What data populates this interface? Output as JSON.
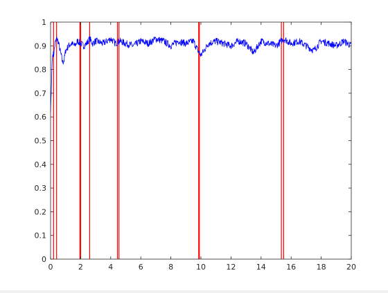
{
  "chart_data": {
    "type": "line",
    "title": "",
    "xlabel": "",
    "ylabel": "",
    "xlim": [
      0,
      20
    ],
    "ylim": [
      0,
      1
    ],
    "x_ticks": [
      "0",
      "2",
      "4",
      "6",
      "8",
      "10",
      "12",
      "14",
      "16",
      "18",
      "20"
    ],
    "y_ticks": [
      "0",
      "0.1",
      "0.2",
      "0.3",
      "0.4",
      "0.5",
      "0.6",
      "0.7",
      "0.8",
      "0.9",
      "1"
    ],
    "grid": false,
    "legend": "none",
    "series": [
      {
        "color": "#0000ff",
        "style": "solid-noisy",
        "x": [
          0.0,
          0.05,
          0.1,
          0.15,
          0.2,
          0.3,
          0.4,
          0.5,
          0.6,
          0.7,
          0.8,
          0.9,
          1.0,
          1.2,
          1.4,
          1.6,
          1.8,
          2.0,
          2.2,
          2.4,
          2.6,
          2.8,
          3.0,
          3.5,
          4.0,
          4.3,
          4.6,
          5.0,
          5.5,
          6.0,
          6.5,
          7.0,
          7.5,
          8.0,
          8.5,
          9.0,
          9.5,
          9.8,
          10.0,
          10.5,
          11.0,
          11.5,
          12.0,
          12.5,
          13.0,
          13.5,
          14.0,
          14.5,
          15.0,
          15.5,
          16.0,
          16.5,
          17.0,
          17.5,
          18.0,
          18.5,
          19.0,
          19.5,
          20.0
        ],
        "y": [
          0.62,
          0.72,
          0.83,
          0.87,
          0.86,
          0.91,
          0.93,
          0.92,
          0.89,
          0.86,
          0.83,
          0.84,
          0.88,
          0.9,
          0.91,
          0.9,
          0.92,
          0.91,
          0.9,
          0.91,
          0.93,
          0.91,
          0.92,
          0.91,
          0.93,
          0.91,
          0.92,
          0.91,
          0.9,
          0.92,
          0.91,
          0.93,
          0.92,
          0.9,
          0.92,
          0.91,
          0.92,
          0.88,
          0.86,
          0.91,
          0.92,
          0.91,
          0.9,
          0.92,
          0.91,
          0.87,
          0.92,
          0.91,
          0.9,
          0.93,
          0.91,
          0.92,
          0.9,
          0.88,
          0.92,
          0.91,
          0.9,
          0.92,
          0.9
        ]
      }
    ],
    "vertical_lines": {
      "color": "#ff0000",
      "x": [
        0.2,
        0.4,
        1.95,
        2.0,
        2.6,
        4.45,
        4.55,
        9.85,
        9.9,
        15.35,
        15.5
      ]
    }
  }
}
